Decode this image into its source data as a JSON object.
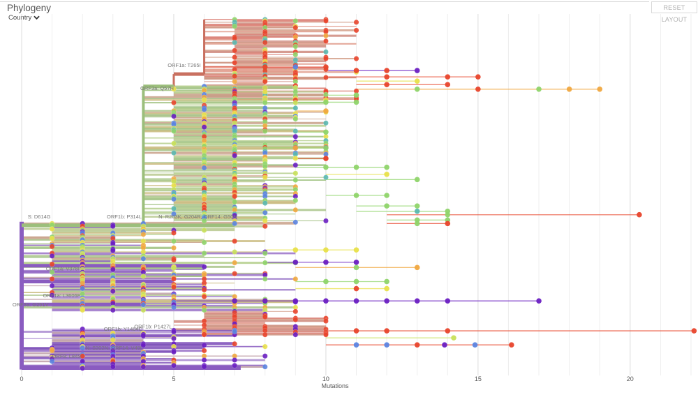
{
  "header": {
    "title": "Phylogeny",
    "color_by_label": "Country",
    "color_by_icon": "chevron-down-icon",
    "reset_label": "RESET LAYOUT"
  },
  "palette": {
    "purple": "#6a1fc2",
    "blue": "#5b84e0",
    "teal": "#5ab8b0",
    "green": "#8fd46a",
    "lime": "#c8e05a",
    "yellow": "#e8e04a",
    "orange": "#f0a840",
    "red": "#e8452c"
  },
  "chart_data": {
    "type": "tree",
    "title": "Phylogeny",
    "xlabel": "Mutations",
    "ylabel": "",
    "xlim": [
      0,
      22
    ],
    "xticks": [
      0,
      5,
      10,
      15,
      20
    ],
    "grid": true,
    "clades": [
      {
        "name": "root-purple",
        "x0": 0,
        "x1": 0,
        "y0": 0.575,
        "y1": 0.995,
        "color": "#8a5cc0"
      },
      {
        "name": "S: D614G",
        "x0": 0,
        "x1": 3,
        "y0": 0.585,
        "y1": 0.585,
        "color": "#9cbf7c"
      },
      {
        "name": "ORF1b: P314L",
        "x0": 3,
        "x1": 4,
        "y0": 0.585,
        "y1": 0.585,
        "color": "#9cbf7c"
      },
      {
        "name": "ORF3a: Q57H",
        "x0": 4,
        "x1": 5,
        "y0": 0.19,
        "y1": 0.19,
        "color": "#9cbf7c"
      },
      {
        "name": "ORF1a: T265I",
        "x0": 5,
        "x1": 6,
        "y0": 0.155,
        "y1": 0.155,
        "color": "#c97060"
      },
      {
        "name": "N: R203K, G204R; ORF14: G50N",
        "x0": 4,
        "x1": 7,
        "y0": 0.585,
        "y1": 0.585,
        "color": "#9cbf7c"
      }
    ],
    "mutation_labels": [
      {
        "text": "S: D614G",
        "x": 0.2,
        "y": 0.565
      },
      {
        "text": "ORF1b: P314L",
        "x": 2.8,
        "y": 0.565
      },
      {
        "text": "N: R203K, G204R; ORF14: G50N",
        "x": 4.5,
        "y": 0.565
      },
      {
        "text": "ORF1a: T265I",
        "x": 4.8,
        "y": 0.135
      },
      {
        "text": "ORF3a: Q57H",
        "x": 3.9,
        "y": 0.2
      },
      {
        "text": "ORF3a: G251V",
        "x": -0.3,
        "y": 0.815
      },
      {
        "text": "ORF1a: V378I",
        "x": 0.8,
        "y": 0.713
      },
      {
        "text": "ORF1a: L3606F",
        "x": 0.7,
        "y": 0.79
      },
      {
        "text": "ORF1b: Y1464C",
        "x": 2.7,
        "y": 0.885
      },
      {
        "text": "ORF1b: P1427L",
        "x": 3.7,
        "y": 0.878
      },
      {
        "text": "N: S202N; ORF14: V49I",
        "x": 2.1,
        "y": 0.938
      },
      {
        "text": "ORF8: L84S",
        "x": 1.0,
        "y": 0.962
      }
    ],
    "long_branches": [
      {
        "y": 0.135,
        "x_from": 6,
        "points": [
          [
            8,
            "red"
          ],
          [
            9,
            "blue"
          ],
          [
            10,
            "red"
          ]
        ]
      },
      {
        "y": 0.145,
        "x_from": 10,
        "points": [
          [
            11,
            "red"
          ],
          [
            12,
            "red"
          ],
          [
            13,
            "purple"
          ]
        ]
      },
      {
        "y": 0.163,
        "x_from": 10,
        "points": [
          [
            12,
            "red"
          ],
          [
            14,
            "red"
          ],
          [
            15,
            "red"
          ]
        ]
      },
      {
        "y": 0.175,
        "x_from": 11,
        "points": [
          [
            13,
            "yellow"
          ]
        ]
      },
      {
        "y": 0.185,
        "x_from": 11,
        "points": [
          [
            12,
            "red"
          ],
          [
            14,
            "red"
          ]
        ]
      },
      {
        "y": 0.198,
        "x_from": 11,
        "points": [
          [
            13,
            "green"
          ],
          [
            15,
            "red"
          ],
          [
            17,
            "green"
          ],
          [
            18,
            "orange"
          ],
          [
            19,
            "orange"
          ]
        ]
      },
      {
        "y": 0.215,
        "x_from": 10,
        "points": [
          [
            11,
            "green"
          ]
        ]
      },
      {
        "y": 0.235,
        "x_from": 9,
        "points": [
          [
            10,
            "green"
          ],
          [
            11,
            "green"
          ]
        ]
      },
      {
        "y": 0.26,
        "x_from": 9,
        "points": [
          [
            10,
            "orange"
          ]
        ]
      },
      {
        "y": 0.32,
        "x_from": 9,
        "points": [
          [
            10,
            "green"
          ]
        ]
      },
      {
        "y": 0.365,
        "x_from": 8,
        "points": [
          [
            9,
            "orange"
          ],
          [
            10,
            "green"
          ]
        ]
      },
      {
        "y": 0.395,
        "x_from": 9,
        "points": [
          [
            10,
            "red"
          ]
        ]
      },
      {
        "y": 0.42,
        "x_from": 9,
        "points": [
          [
            10,
            "green"
          ],
          [
            11,
            "green"
          ],
          [
            12,
            "green"
          ]
        ]
      },
      {
        "y": 0.44,
        "x_from": 10,
        "points": [
          [
            12,
            "yellow"
          ]
        ]
      },
      {
        "y": 0.455,
        "x_from": 10,
        "points": [
          [
            13,
            "green"
          ]
        ]
      },
      {
        "y": 0.5,
        "x_from": 10,
        "points": [
          [
            11,
            "green"
          ],
          [
            12,
            "green"
          ]
        ]
      },
      {
        "y": 0.53,
        "x_from": 11,
        "points": [
          [
            12,
            "green"
          ],
          [
            13,
            "green"
          ]
        ]
      },
      {
        "y": 0.545,
        "x_from": 11,
        "points": [
          [
            13,
            "teal"
          ],
          [
            14,
            "green"
          ]
        ]
      },
      {
        "y": 0.555,
        "x_from": 12,
        "points": [
          [
            14,
            "green"
          ],
          [
            20.3,
            "red"
          ]
        ]
      },
      {
        "y": 0.57,
        "x_from": 12,
        "points": [
          [
            13,
            "green"
          ],
          [
            14,
            "green"
          ]
        ]
      },
      {
        "y": 0.58,
        "x_from": 12,
        "points": [
          [
            13,
            "green"
          ],
          [
            14,
            "red"
          ]
        ]
      },
      {
        "y": 0.655,
        "x_from": 8,
        "points": [
          [
            9,
            "yellow"
          ],
          [
            10,
            "yellow"
          ],
          [
            11,
            "yellow"
          ]
        ]
      },
      {
        "y": 0.69,
        "x_from": 8,
        "points": [
          [
            9,
            "purple"
          ],
          [
            10,
            "purple"
          ],
          [
            11,
            "purple"
          ]
        ]
      },
      {
        "y": 0.705,
        "x_from": 9,
        "points": [
          [
            11,
            "green"
          ],
          [
            13,
            "orange"
          ]
        ]
      },
      {
        "y": 0.745,
        "x_from": 9,
        "points": [
          [
            10,
            "green"
          ],
          [
            11,
            "green"
          ],
          [
            12,
            "green"
          ]
        ]
      },
      {
        "y": 0.765,
        "x_from": 9,
        "points": [
          [
            11,
            "red"
          ],
          [
            12,
            "yellow"
          ]
        ]
      },
      {
        "y": 0.8,
        "x_from": 5,
        "points": [
          [
            7,
            "purple"
          ],
          [
            8,
            "purple"
          ],
          [
            9,
            "purple"
          ],
          [
            10,
            "purple"
          ],
          [
            11,
            "purple"
          ],
          [
            12,
            "purple"
          ],
          [
            13,
            "purple"
          ],
          [
            14,
            "purple"
          ],
          [
            17,
            "purple"
          ]
        ]
      },
      {
        "y": 0.885,
        "x_from": 10,
        "points": [
          [
            11,
            "red"
          ],
          [
            12,
            "red"
          ],
          [
            14,
            "red"
          ],
          [
            22.1,
            "red"
          ]
        ]
      },
      {
        "y": 0.905,
        "x_from": 10,
        "points": [
          [
            14.2,
            "lime"
          ]
        ]
      },
      {
        "y": 0.925,
        "x_from": 10,
        "points": [
          [
            11,
            "blue"
          ],
          [
            12,
            "blue"
          ],
          [
            13,
            "red"
          ],
          [
            13.9,
            "purple"
          ],
          [
            14.9,
            "blue"
          ],
          [
            16.1,
            "red"
          ]
        ]
      }
    ]
  },
  "xaxis": {
    "title": "Mutations",
    "ticks": [
      "0",
      "5",
      "10",
      "15",
      "20"
    ]
  }
}
